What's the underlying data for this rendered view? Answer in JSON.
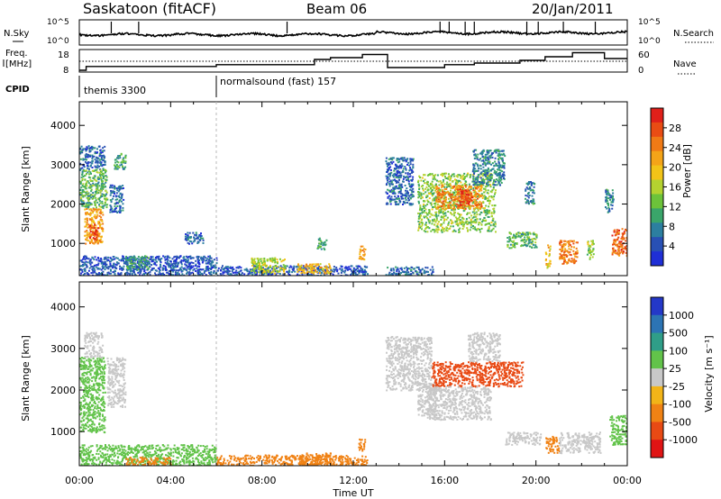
{
  "header": {
    "station": "Saskatoon (fitACF)",
    "beam": "Beam 06",
    "date": "20/Jan/2011"
  },
  "panels": {
    "noise": {
      "label": "N.Sky",
      "right_label": "N.Search",
      "tick_top": "10^5",
      "tick_bottom": "10^0"
    },
    "freq": {
      "label_line1": "Freq.",
      "label_line2": "[MHz]",
      "right_label": "Nave",
      "left_ticks": [
        "18",
        "8"
      ],
      "right_ticks": [
        "60",
        "0"
      ]
    },
    "cpid": {
      "label": "CPID",
      "segments": [
        {
          "start_hour": 0,
          "text": "themis 3300"
        },
        {
          "start_hour": 6,
          "text": "normalsound (fast) 157"
        }
      ]
    }
  },
  "axes": {
    "x_ticks": [
      "00:00",
      "04:00",
      "08:00",
      "12:00",
      "16:00",
      "20:00",
      "00:00"
    ],
    "xlabel": "Time UT",
    "ylabel": "Slant Range [km]",
    "y_ticks": [
      "1000",
      "2000",
      "3000",
      "4000"
    ]
  },
  "colorbars": {
    "power": {
      "label": "Power [dB]",
      "ticks": [
        "4",
        "8",
        "12",
        "16",
        "20",
        "24",
        "28"
      ],
      "colors": [
        "#1f2fd6",
        "#2850b4",
        "#2c7fa0",
        "#3aa56a",
        "#6cc33a",
        "#b4d230",
        "#f2c418",
        "#f4a418",
        "#f07a16",
        "#e94c14",
        "#e0201a"
      ]
    },
    "velocity": {
      "label": "Velocity [m s⁻¹]",
      "ticks": [
        "1000",
        "500",
        "100",
        "25",
        "-25",
        "-100",
        "-500",
        "-1000"
      ],
      "colors": [
        "#2438c8",
        "#2c74b4",
        "#2f9e88",
        "#62c34a",
        "#c8c8c8",
        "#f2b418",
        "#f08214",
        "#e84a14",
        "#e01414"
      ]
    }
  },
  "chart_data": [
    {
      "type": "heatmap",
      "title": "",
      "xlabel": "Time UT",
      "ylabel": "Slant Range [km]",
      "xlim": [
        0,
        24
      ],
      "ylim": [
        180,
        4600
      ],
      "colorbar": "Power [dB]",
      "cells": [
        {
          "t0": 0.0,
          "t1": 1.1,
          "r0": 2900,
          "r1": 3500,
          "v": 6
        },
        {
          "t0": 0.0,
          "t1": 1.2,
          "r0": 1900,
          "r1": 2900,
          "v": 12
        },
        {
          "t0": 0.2,
          "t1": 1.0,
          "r0": 1000,
          "r1": 1900,
          "v": 22
        },
        {
          "t0": 0.4,
          "t1": 0.8,
          "r0": 1100,
          "r1": 1500,
          "v": 28
        },
        {
          "t0": 1.3,
          "t1": 1.9,
          "r0": 1800,
          "r1": 2500,
          "v": 6
        },
        {
          "t0": 1.5,
          "t1": 2.0,
          "r0": 2900,
          "r1": 3300,
          "v": 10
        },
        {
          "t0": 0.0,
          "t1": 6.0,
          "r0": 180,
          "r1": 700,
          "v": 5
        },
        {
          "t0": 2.0,
          "t1": 3.0,
          "r0": 350,
          "r1": 700,
          "v": 9
        },
        {
          "t0": 4.6,
          "t1": 5.4,
          "r0": 1000,
          "r1": 1300,
          "v": 6
        },
        {
          "t0": 6.0,
          "t1": 12.6,
          "r0": 180,
          "r1": 450,
          "v": 5
        },
        {
          "t0": 7.5,
          "t1": 9.0,
          "r0": 250,
          "r1": 650,
          "v": 16
        },
        {
          "t0": 9.5,
          "t1": 11.0,
          "r0": 250,
          "r1": 500,
          "v": 20
        },
        {
          "t0": 10.4,
          "t1": 10.8,
          "r0": 850,
          "r1": 1150,
          "v": 10
        },
        {
          "t0": 12.2,
          "t1": 12.5,
          "r0": 600,
          "r1": 950,
          "v": 22
        },
        {
          "t0": 13.4,
          "t1": 15.5,
          "r0": 180,
          "r1": 420,
          "v": 6
        },
        {
          "t0": 13.4,
          "t1": 14.6,
          "r0": 2000,
          "r1": 3200,
          "v": 6
        },
        {
          "t0": 14.8,
          "t1": 18.2,
          "r0": 1300,
          "r1": 2800,
          "v": 14
        },
        {
          "t0": 15.6,
          "t1": 17.6,
          "r0": 1900,
          "r1": 2500,
          "v": 24
        },
        {
          "t0": 16.6,
          "t1": 17.2,
          "r0": 2000,
          "r1": 2400,
          "v": 28
        },
        {
          "t0": 17.2,
          "t1": 18.6,
          "r0": 2500,
          "r1": 3400,
          "v": 8
        },
        {
          "t0": 18.7,
          "t1": 20.0,
          "r0": 900,
          "r1": 1300,
          "v": 12
        },
        {
          "t0": 19.5,
          "t1": 19.9,
          "r0": 2000,
          "r1": 2600,
          "v": 8
        },
        {
          "t0": 20.4,
          "t1": 20.6,
          "r0": 400,
          "r1": 1000,
          "v": 20
        },
        {
          "t0": 21.0,
          "t1": 21.8,
          "r0": 500,
          "r1": 1100,
          "v": 24
        },
        {
          "t0": 22.2,
          "t1": 22.5,
          "r0": 600,
          "r1": 1100,
          "v": 14
        },
        {
          "t0": 23.0,
          "t1": 23.4,
          "r0": 1800,
          "r1": 2400,
          "v": 8
        },
        {
          "t0": 23.3,
          "t1": 24.0,
          "r0": 700,
          "r1": 1400,
          "v": 26
        }
      ]
    },
    {
      "type": "heatmap",
      "title": "",
      "xlabel": "Time UT",
      "ylabel": "Slant Range [km]",
      "xlim": [
        0,
        24
      ],
      "ylim": [
        180,
        4600
      ],
      "colorbar": "Velocity [m s⁻¹]",
      "cells": [
        {
          "t0": 0.0,
          "t1": 1.1,
          "r0": 1000,
          "r1": 2800,
          "v": 60
        },
        {
          "t0": 0.2,
          "t1": 1.0,
          "r0": 2800,
          "r1": 3400,
          "v": 0
        },
        {
          "t0": 1.2,
          "t1": 2.0,
          "r0": 1600,
          "r1": 2800,
          "v": 0
        },
        {
          "t0": 0.0,
          "t1": 6.0,
          "r0": 180,
          "r1": 700,
          "v": 60
        },
        {
          "t0": 2.0,
          "t1": 4.0,
          "r0": 200,
          "r1": 400,
          "v": -150
        },
        {
          "t0": 6.0,
          "t1": 12.6,
          "r0": 180,
          "r1": 450,
          "v": -150
        },
        {
          "t0": 9.6,
          "t1": 11.0,
          "r0": 200,
          "r1": 500,
          "v": -300
        },
        {
          "t0": 12.2,
          "t1": 12.5,
          "r0": 550,
          "r1": 850,
          "v": -400
        },
        {
          "t0": 13.4,
          "t1": 15.4,
          "r0": 2000,
          "r1": 3300,
          "v": 0
        },
        {
          "t0": 14.8,
          "t1": 15.6,
          "r0": 1400,
          "r1": 2200,
          "v": 0
        },
        {
          "t0": 15.4,
          "t1": 19.4,
          "r0": 2100,
          "r1": 2700,
          "v": -600
        },
        {
          "t0": 15.2,
          "t1": 18.0,
          "r0": 1300,
          "r1": 2100,
          "v": 0
        },
        {
          "t0": 17.0,
          "t1": 18.4,
          "r0": 2700,
          "r1": 3400,
          "v": 10
        },
        {
          "t0": 18.6,
          "t1": 20.2,
          "r0": 700,
          "r1": 1000,
          "v": 0
        },
        {
          "t0": 20.4,
          "t1": 21.0,
          "r0": 500,
          "r1": 900,
          "v": -400
        },
        {
          "t0": 21.0,
          "t1": 22.8,
          "r0": 500,
          "r1": 1000,
          "v": 0
        },
        {
          "t0": 23.2,
          "t1": 24.0,
          "r0": 700,
          "r1": 1400,
          "v": 80
        }
      ]
    },
    {
      "type": "line",
      "title": "",
      "xlabel": "Time UT",
      "ylabel": "Freq. [MHz]",
      "xlim": [
        0,
        24
      ],
      "ylim": [
        8,
        18
      ],
      "series": [
        {
          "x": [
            0,
            0.3,
            0.3,
            6.0,
            6.0,
            10.3,
            10.3,
            11.0,
            11.0,
            12.4,
            12.4,
            13.5,
            13.5,
            16.0,
            16.0,
            17.3,
            17.3,
            19.3,
            19.3,
            20.4,
            20.4,
            21.6,
            21.6,
            23.0,
            23.0,
            24
          ],
          "y": [
            8.8,
            8.8,
            10.5,
            10.5,
            11.3,
            11.3,
            13.6,
            13.6,
            14.4,
            14.4,
            15.8,
            15.8,
            10.0,
            10.0,
            11.3,
            11.3,
            12.0,
            12.0,
            13.2,
            13.2,
            14.8,
            14.8,
            16.6,
            16.6,
            14.0,
            14.0
          ]
        }
      ]
    }
  ]
}
